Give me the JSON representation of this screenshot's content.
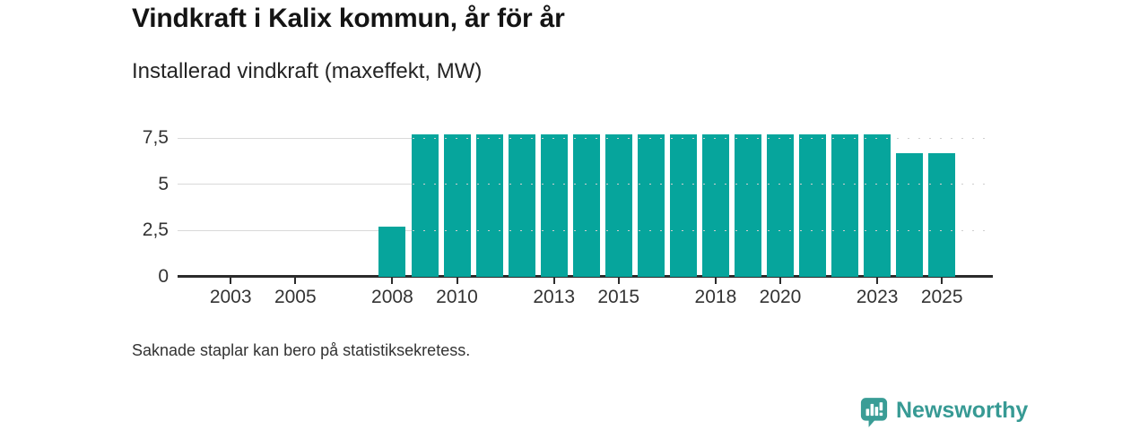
{
  "page": {
    "title": "Vindkraft i Kalix kommun, år för år",
    "subtitle": "Installerad vindkraft (maxeffekt, MW)",
    "footnote": "Saknade staplar kan bero på statistiksekretess."
  },
  "brand": {
    "name": "Newsworthy",
    "icon": "newsworthy-chart-pin-icon",
    "color": "#3a9d96"
  },
  "chart_data": {
    "type": "bar",
    "title": "Vindkraft i Kalix kommun, år för år",
    "subtitle": "Installerad vindkraft (maxeffekt, MW)",
    "unit": "MW",
    "ylabel": "Installerad vindkraft (maxeffekt, MW)",
    "categories": [
      2008,
      2009,
      2010,
      2011,
      2012,
      2013,
      2014,
      2015,
      2016,
      2017,
      2018,
      2019,
      2020,
      2021,
      2022,
      2023,
      2024,
      2025
    ],
    "values": [
      2.7,
      7.7,
      7.7,
      7.7,
      7.7,
      7.7,
      7.7,
      7.7,
      7.7,
      7.7,
      7.7,
      7.7,
      7.7,
      7.7,
      7.7,
      7.7,
      6.7,
      6.7
    ],
    "x_axis": {
      "range": [
        2002,
        2025
      ],
      "tick_years": [
        2003,
        2005,
        2008,
        2010,
        2013,
        2015,
        2018,
        2020,
        2023,
        2025
      ],
      "tick_labels": [
        "2003",
        "2005",
        "2008",
        "2010",
        "2013",
        "2015",
        "2018",
        "2020",
        "2023",
        "2025"
      ]
    },
    "y_axis": {
      "range": [
        0,
        8.75
      ],
      "tick_values": [
        0,
        2.5,
        5,
        7.5
      ],
      "tick_labels": [
        "0",
        "2,5",
        "5",
        "7,5"
      ]
    },
    "grid": "horizontal",
    "legend": "none",
    "bar_color": "#06a59c",
    "missing_bars_note": "Saknade staplar kan bero på statistiksekretess."
  }
}
